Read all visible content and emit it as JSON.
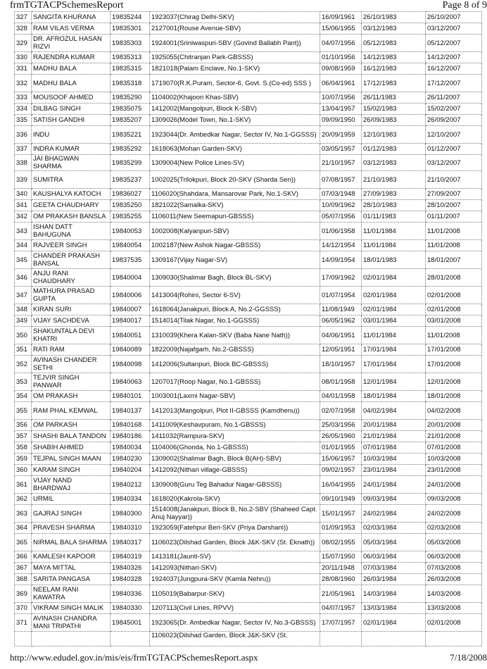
{
  "header": {
    "title": "frmTGTACPSchemesReport",
    "page": "Page 8 of 9"
  },
  "footer": {
    "url": "http://www.edudel.gov.in/mis/eis/frmTGTACPSchemesReport.aspx",
    "date": "7/18/2008"
  },
  "rows": [
    [
      "327",
      "SANGITA KHURANA",
      "19835244",
      "1923037(Chirag Delhi-SKV)",
      "16/09/1961",
      "26/10/1983",
      "26/10/2007"
    ],
    [
      "328",
      "RAM VILAS VERMA",
      "19835301",
      "2127001(Rouse Avenue-SBV)",
      "15/06/1955",
      "03/12/1983",
      "03/12/2007"
    ],
    [
      "329",
      "DR. AFROZUL HASAN RIZVI",
      "19835303",
      "1924001(Sriniwaspuri-SBV (Govind Ballabh Pant))",
      "04/07/1956",
      "05/12/1983",
      "05/12/2007"
    ],
    [
      "330",
      "RAJENDRA KUMAR",
      "19835313",
      "1925055(Chitranjan Park-GBSSS)",
      "01/10/1956",
      "14/12/1983",
      "14/12/2007"
    ],
    [
      "331",
      "MADHU BALA",
      "19835315",
      "1821018(Palam Enclave, No.1-SKV)",
      "09/08/1959",
      "16/12/1983",
      "16/12/2007"
    ],
    [
      "332",
      "MADHU BALA",
      "19835318",
      "1719070(R.K.Puram, Sector-6, Govt. S.(Co-ed) SSS )",
      "06/04/1961",
      "17/12/1983",
      "17/12/2007"
    ],
    [
      "333",
      "MOUSOOF AHMED",
      "19835290",
      "1104002(Khajoori Khas-SBV)",
      "10/07/1956",
      "26/11/1983",
      "26/11/2007"
    ],
    [
      "334",
      "DILBAG SINGH",
      "19835075",
      "1412002(Mangolpuri, Block K-SBV)",
      "13/04/1957",
      "15/02/1983",
      "15/02/2007"
    ],
    [
      "335",
      "SATISH GANDHI",
      "19835207",
      "1309026(Model Town, No.1-SKV)",
      "09/09/1950",
      "26/09/1983",
      "26/09/2007"
    ],
    [
      "336",
      "INDU",
      "19835221",
      "1923044(Dr. Ambedkar Nagar, Sector IV, No.1-GGSSS)",
      "20/09/1959",
      "12/10/1983",
      "12/10/2007"
    ],
    [
      "337",
      "INDRA KUMAR",
      "19835292",
      "1618063(Mohan Garden-SKV)",
      "03/05/1957",
      "01/12/1983",
      "01/12/2007"
    ],
    [
      "338",
      "JAI BHAGWAN SHARMA",
      "19835299",
      "1309004(New Police Lines-SV)",
      "21/10/1957",
      "03/12/1983",
      "03/12/2007"
    ],
    [
      "339",
      "SUMITRA",
      "19835237",
      "1002025(Trilokpuri, Block 20-SKV (Sharda Sen))",
      "07/08/1957",
      "21/10/1983",
      "21/10/2007"
    ],
    [
      "340",
      "KAUSHALYA KATOCH",
      "19836027",
      "1106020(Shahdara, Mansarovar Park, No.1-SKV)",
      "07/03/1948",
      "27/09/1983",
      "27/09/2007"
    ],
    [
      "341",
      "GEETA CHAUDHARY",
      "19835250",
      "1821022(Samalka-SKV)",
      "10/09/1962",
      "28/10/1983",
      "28/10/2007"
    ],
    [
      "342",
      "OM PRAKASH BANSLA",
      "19835255",
      "1106011(New Seemapuri-GBSSS)",
      "05/07/1956",
      "01/11/1983",
      "01/11/2007"
    ],
    [
      "343",
      "ISHAN DATT BAHUGUNA",
      "19840053",
      "1002008(Kalyanpuri-SBV)",
      "01/06/1958",
      "11/01/1984",
      "11/01/2008"
    ],
    [
      "344",
      "RAJVEER SINGH",
      "19840054",
      "1002187(New Ashok Nagar-GBSSS)",
      "14/12/1954",
      "11/01/1984",
      "11/01/2008"
    ],
    [
      "345",
      "CHANDER PRAKASH BANSAL",
      "19837535",
      "1309167(Vijay Nagar-SV)",
      "14/09/1954",
      "18/01/1983",
      "18/01/2007"
    ],
    [
      "346",
      "ANJU RANI CHAUDHARY",
      "19840004",
      "1309030(Shalimar Bagh, Block BL-SKV)",
      "17/09/1962",
      "02/01/1984",
      "28/01/2008"
    ],
    [
      "347",
      "MATHURA PRASAD GUPTA",
      "19840006",
      "1413004(Rohini, Sector 6-SV)",
      "01/07/1954",
      "02/01/1984",
      "02/01/2008"
    ],
    [
      "348",
      "KIRAN SURI",
      "19840007",
      "1618064(Janakpuri, Block A, No.2-GGSSS)",
      "11/08/1949",
      "02/01/1984",
      "02/01/2008"
    ],
    [
      "349",
      "VIJAY SACHDEVA",
      "19840017",
      "1514014(Tilak Nagar, No.1-GGSSS)",
      "06/05/1962",
      "03/01/1984",
      "03/01/2008"
    ],
    [
      "350",
      "SHAKUNTALA DEVI KHATRI",
      "19840051",
      "1310039(Khera Kalan-SKV (Baba Nane Nath))",
      "04/06/1951",
      "11/01/1984",
      "11/01/2008"
    ],
    [
      "351",
      "RATI RAM",
      "19840089",
      "1822009(Najafgarh, No.2-GBSSS)",
      "12/05/1951",
      "17/01/1984",
      "17/01/2008"
    ],
    [
      "352",
      "AVINASH CHANDER SETHI",
      "19840098",
      "1412006(Sultanpuri, Block BC-GBSSS)",
      "18/10/1957",
      "17/01/1984",
      "17/01/2008"
    ],
    [
      "353",
      "TEJVIR SINGH PANWAR",
      "19840063",
      "1207017(Roop Nagar, No.1-GBSSS)",
      "08/01/1958",
      "12/01/1984",
      "12/01/2008"
    ],
    [
      "354",
      "OM PRAKASH",
      "19840101",
      "1003001(Laxmi Nagar-SBV)",
      "04/01/1958",
      "18/01/1984",
      "18/01/2008"
    ],
    [
      "355",
      "RAM PHAL KEMWAL",
      "19840137",
      "1412013(Mangolpuri, Plot II-GBSSS (Kamdhenu))",
      "02/07/1958",
      "04/02/1984",
      "04/02/2008"
    ],
    [
      "356",
      "OM PARKASH",
      "19840168",
      "1411009(Keshavpuram, No.1-GBSSS)",
      "25/03/1956",
      "20/01/1984",
      "20/01/2008"
    ],
    [
      "357",
      "SHASHI BALA TANDON",
      "19840186",
      "1411032(Rampura-SKV)",
      "26/05/1960",
      "21/01/1984",
      "21/01/2008"
    ],
    [
      "358",
      "SHABIH AHMED",
      "19840034",
      "1104006(Ghonda, No.1-GBSSS)",
      "01/01/1955",
      "07/01/1984",
      "07/01/2008"
    ],
    [
      "359",
      "TEJPAL SINGH MAAN",
      "19840230",
      "1309002(Shalimar Bagh, Block B(AH)-SBV)",
      "15/06/1957",
      "10/03/1984",
      "10/03/2008"
    ],
    [
      "360",
      "KARAM SINGH",
      "19840204",
      "1412092(Nithari village-GBSSS)",
      "09/02/1957",
      "23/01/1984",
      "23/01/2008"
    ],
    [
      "361",
      "VIJAY NAND BHARDWAJ",
      "19840212",
      "1309008(Guru Teg Bahadur Nagar-GBSSS)",
      "16/04/1955",
      "24/01/1984",
      "24/01/2008"
    ],
    [
      "362",
      "URMIL",
      "19840334",
      "1618020(Kakrola-SKV)",
      "09/10/1949",
      "09/03/1984",
      "09/03/2008"
    ],
    [
      "363",
      "GAJRAJ SINGH",
      "19840300",
      "1514008(Janakpuri, Block B, No.2-SBV (Shaheed Capt. Anuj Nayyar))",
      "15/01/1957",
      "24/02/1984",
      "24/02/2008"
    ],
    [
      "364",
      "PRAVESH SHARMA",
      "19840310",
      "1923059(Fatehpur Beri-SKV (Priya Darshani))",
      "01/09/1953",
      "02/03/1984",
      "02/03/2008"
    ],
    [
      "365",
      "NIRMAL BALA SHARMA",
      "19840317",
      "1106023(Dilshad Garden, Block J&K-SKV (St. Eknath))",
      "08/02/1955",
      "05/03/1984",
      "05/03/2008"
    ],
    [
      "366",
      "KAMLESH KAPOOR",
      "19840319",
      "1413181(Jaunti-SV)",
      "15/07/1950",
      "06/03/1984",
      "06/03/2008"
    ],
    [
      "367",
      "MAYA MITTAL",
      "19840326",
      "1412093(Nithari-SKV)",
      "20/11/1948",
      "07/03/1984",
      "07/03/2008"
    ],
    [
      "368",
      "SARITA PANGASA",
      "19840328",
      "1924037(Jungpura-SKV (Kamla Nehru))",
      "28/08/1960",
      "26/03/1984",
      "26/03/2008"
    ],
    [
      "369",
      "NEELAM RANI KAWATRA",
      "19840336",
      "1105019(Babarpur-SKV)",
      "21/05/1961",
      "14/03/1984",
      "14/03/2008"
    ],
    [
      "370",
      "VIKRAM SINGH MALIK",
      "19840330",
      "1207113(Civil Lines, RPVV)",
      "04/07/1957",
      "13/03/1984",
      "13/03/2008"
    ],
    [
      "371",
      "AVINASH CHANDRA MANI TRIPATHI",
      "19845001",
      "1923065(Dr. Ambedkar Nagar, Sector IV, No.3-GBSSS)",
      "17/07/1957",
      "02/01/1984",
      "02/01/2008"
    ],
    [
      "",
      "",
      "",
      "1106023(Dilshad Garden, Block J&K-SKV (St.",
      "",
      "",
      ""
    ]
  ]
}
